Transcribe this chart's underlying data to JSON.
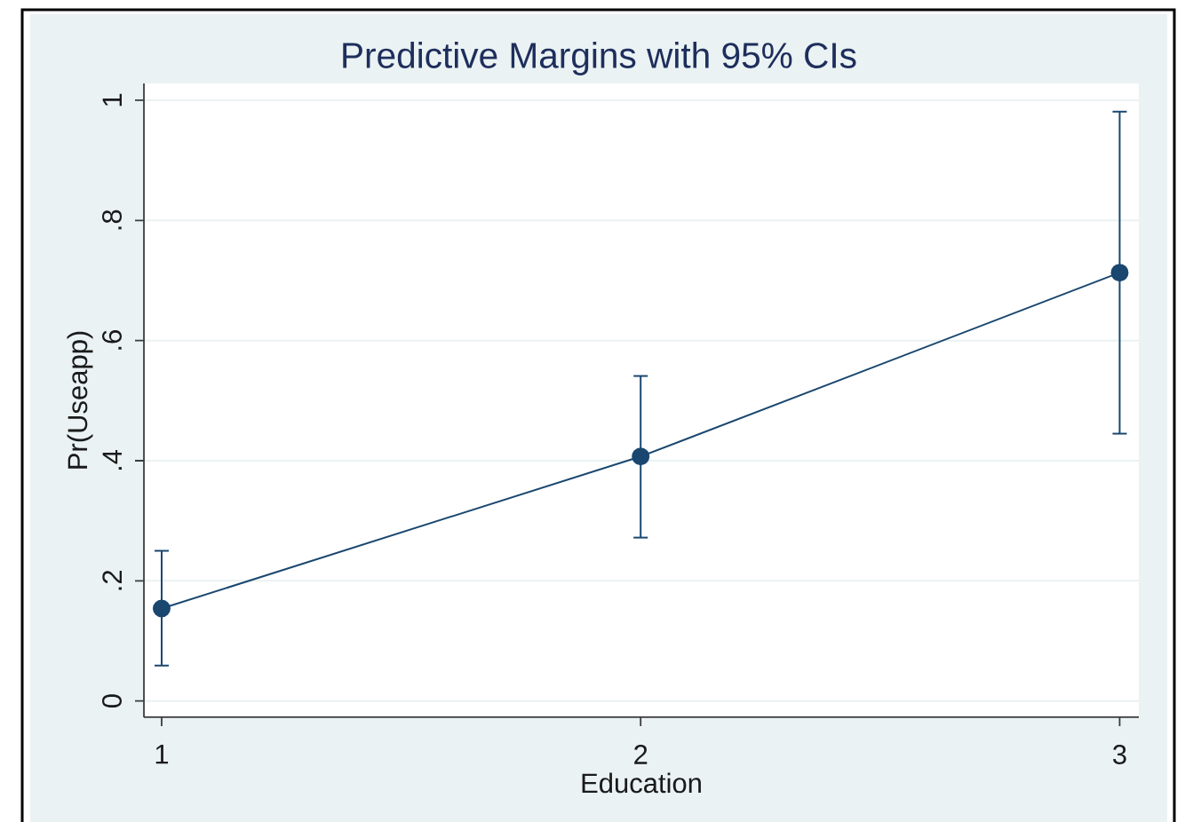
{
  "chart_data": {
    "type": "line",
    "title": "Predictive Margins with 95% CIs",
    "xlabel": "Education",
    "ylabel": "Pr(Useapp)",
    "x": [
      1,
      2,
      3
    ],
    "series": [
      {
        "color": "#1a476f",
        "values": [
          0.154,
          0.407,
          0.713
        ],
        "errors": [
          [
            0.059,
            0.25
          ],
          [
            0.272,
            0.541
          ],
          [
            0.445,
            0.981
          ]
        ]
      }
    ],
    "xlim": [
      0.963,
      3.04
    ],
    "xticks": [
      1,
      2,
      3
    ],
    "ylim": [
      -0.027,
      1.028
    ],
    "yticks": [
      0,
      {
        "value": 0.2,
        "label": ".2"
      },
      {
        "value": 0.4,
        "label": ".4"
      },
      {
        "value": 0.6,
        "label": ".6"
      },
      {
        "value": 0.8,
        "label": ".8"
      },
      1
    ],
    "grid": "y",
    "marker": "circle",
    "line_style": "solid"
  }
}
